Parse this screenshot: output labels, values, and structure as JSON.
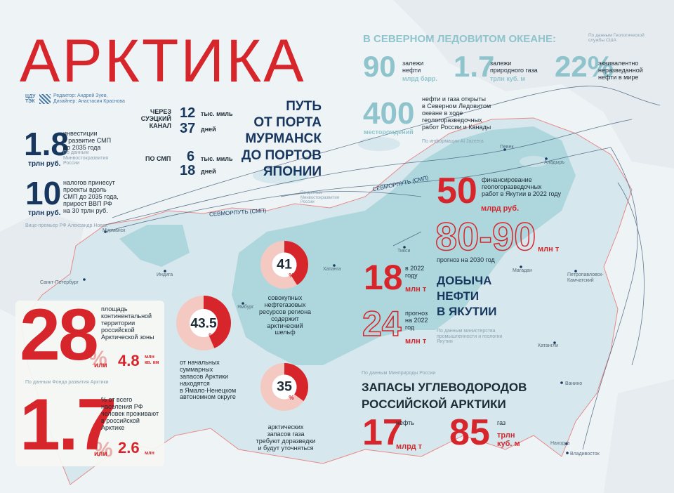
{
  "title": "АРКТИКА",
  "credits": {
    "logo_line1": "ЦДУ",
    "logo_line2": "ТЭК",
    "editor": "Редактор: Андрей Зуев,",
    "designer": "Дизайнер: Анастасия Краснова"
  },
  "investments": {
    "value": "1.8",
    "unit": "трлн руб.",
    "label_line1": "инвестиции",
    "label_line2": "в развитие СМП",
    "label_line3": "до 2035 года",
    "source_line1": "По данным",
    "source_line2": "Минвостокразвития",
    "source_line3": "России"
  },
  "taxes": {
    "value": "10",
    "unit": "трлн руб.",
    "label_line1": "налогов принесут",
    "label_line2": "проекты вдоль",
    "label_line3": "СМП до 2035 года,",
    "label_line4": "прирост ВВП РФ",
    "label_line5": "на 30 трлн руб.",
    "source": "Вице-премьер РФ Александр Новак"
  },
  "route": {
    "suez_line1": "ЧЕРЕЗ",
    "suez_line2": "СУЭЦКИЙ",
    "suez_line3": "КАНАЛ",
    "suez_miles": "12",
    "suez_days": "37",
    "smp_label": "ПО СМП",
    "smp_miles": "6",
    "smp_days": "18",
    "miles_unit": "тыс. миль",
    "days_unit": "дней",
    "heading_line1": "ПУТЬ",
    "heading_line2": "ОТ ПОРТА",
    "heading_line3": "МУРМАНСК",
    "heading_line4": "ДО ПОРТОВ",
    "heading_line5": "ЯПОНИИ"
  },
  "ocean": {
    "heading": "В СЕВЕРНОМ ЛЕДОВИТОМ ОКЕАНЕ:",
    "source_usgs_line1": "По данным Геологической",
    "source_usgs_line2": "службы США",
    "oil_value": "90",
    "oil_unit": "млрд барр.",
    "oil_label_line1": "залежи",
    "oil_label_line2": "нефти",
    "gas_value": "1.7",
    "gas_unit": "трлн куб. м",
    "gas_label_line1": "залежи",
    "gas_label_line2": "природного газа",
    "share_value": "22%",
    "share_label_line1": "эквивалентно",
    "share_label_line2": "неразведанной",
    "share_label_line3": "нефти в мире",
    "fields_value": "400",
    "fields_unit": "месторождений",
    "fields_label_line1": "нефти и газа открыты",
    "fields_label_line2": "в Северном Ледовитом",
    "fields_label_line3": "океане в ходе",
    "fields_label_line4": "геологоразведочных",
    "fields_label_line5": "работ России и Канады",
    "fields_source": "По информации Al Jazeera"
  },
  "yakutia": {
    "finance_value": "50",
    "finance_unit": "млрд руб.",
    "finance_label_line1": "финансирование",
    "finance_label_line2": "геологоразведочных",
    "finance_label_line3": "работ в Якутии в 2022 году",
    "forecast_value": "80-90",
    "forecast_unit": "млн т",
    "forecast_label": "прогноз на 2030 год",
    "y2022_value": "18",
    "y2022_unit": "млн т",
    "y2022_label_line1": "в 2022",
    "y2022_label_line2": "году",
    "plan_value": "24",
    "plan_unit": "млн т",
    "plan_label_line1": "прогноз",
    "plan_label_line2": "на 2022",
    "plan_label_line3": "год",
    "heading_line1": "ДОБЫЧА",
    "heading_line2": "НЕФТИ",
    "heading_line3": "В ЯКУТИИ",
    "source_line1": "По данным министерства",
    "source_line2": "промышленности и геологии",
    "source_line3": "Якутии"
  },
  "reserves": {
    "source": "По данным Минприроды России",
    "heading_line1": "ЗАПАСЫ УГЛЕВОДОРОДОВ",
    "heading_line2": "РОССИЙСКОЙ АРКТИКИ",
    "oil_value": "17",
    "oil_label": "нефть",
    "oil_unit": "млрд т",
    "gas_value": "85",
    "gas_label": "газ",
    "gas_unit_line1": "трлн",
    "gas_unit_line2": "куб. м"
  },
  "territory": {
    "value": "28",
    "pct": "%",
    "or": "или",
    "alt_value": "4.8",
    "alt_unit_line1": "млн",
    "alt_unit_line2": "кв. км",
    "label_line1": "площадь",
    "label_line2": "континентальной",
    "label_line3": "территории",
    "label_line4": "российской",
    "label_line5": "Арктической зоны",
    "source": "По данным Фонда развития Арктики"
  },
  "population": {
    "value": "1.7",
    "pct": "%",
    "or": "или",
    "alt_value": "2.6",
    "alt_unit": "млн",
    "label_line1": "% от всего",
    "label_line2": "населения РФ",
    "label_line3": "человек проживают",
    "label_line4": "в российской",
    "label_line5": "Арктике"
  },
  "donuts": [
    {
      "value": "41",
      "pct": "%",
      "fraction": 0.41,
      "label_line1": "совокупных",
      "label_line2": "нефтегазовых",
      "label_line3": "ресурсов региона",
      "label_line4": "содержит",
      "label_line5": "арктический шельф"
    },
    {
      "value": "43.5",
      "pct": "%",
      "fraction": 0.435,
      "label_line1": "от начальных",
      "label_line2": "суммарных",
      "label_line3": "запасов Арктики",
      "label_line4": "находятся",
      "label_line5": "в Ямало-Ненецком",
      "label_line6": "автономном округе"
    },
    {
      "value": "35",
      "pct": "%",
      "fraction": 0.35,
      "label_line1": "арктических",
      "label_line2": "запасов газа",
      "label_line3": "требуют доразведки",
      "label_line4": "и будут уточняться"
    }
  ],
  "map_labels": {
    "route_west": "СЕВМОРПУТЬ (СМП)",
    "route_east": "СЕВМОРПУТЬ (СМП)",
    "murmansk": "Мурманск",
    "spb": "Санкт-Петербург",
    "indiga": "Индига",
    "yamburg": "Ямбург",
    "khatanga": "Хатанга",
    "tiksi": "Тикси",
    "pevek": "Певек",
    "anadyr": "Анадырь",
    "magadan": "Магадан",
    "petropavlovsk_line1": "Петропавловск-",
    "petropavlovsk_line2": "Камчатский",
    "katangli": "Катангли",
    "vanino": "Ванино",
    "nakhodka": "Находка",
    "vladivostok": "Владивосток",
    "ministry_line1": "По данным",
    "ministry_line2": "Минвостокразвития",
    "ministry_line3": "России"
  }
}
